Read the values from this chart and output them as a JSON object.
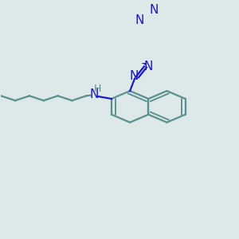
{
  "bg_color": "#dde8e8",
  "bond_color_ring": "#5a9090",
  "bond_color_azo": "#1a1acd",
  "bond_color_chain": "#5a9090",
  "line_width": 1.6,
  "font_size_N": 11,
  "font_size_H": 9,
  "fig_size": [
    3.0,
    3.0
  ],
  "dpi": 100,
  "xlim": [
    0,
    300
  ],
  "ylim": [
    0,
    300
  ]
}
